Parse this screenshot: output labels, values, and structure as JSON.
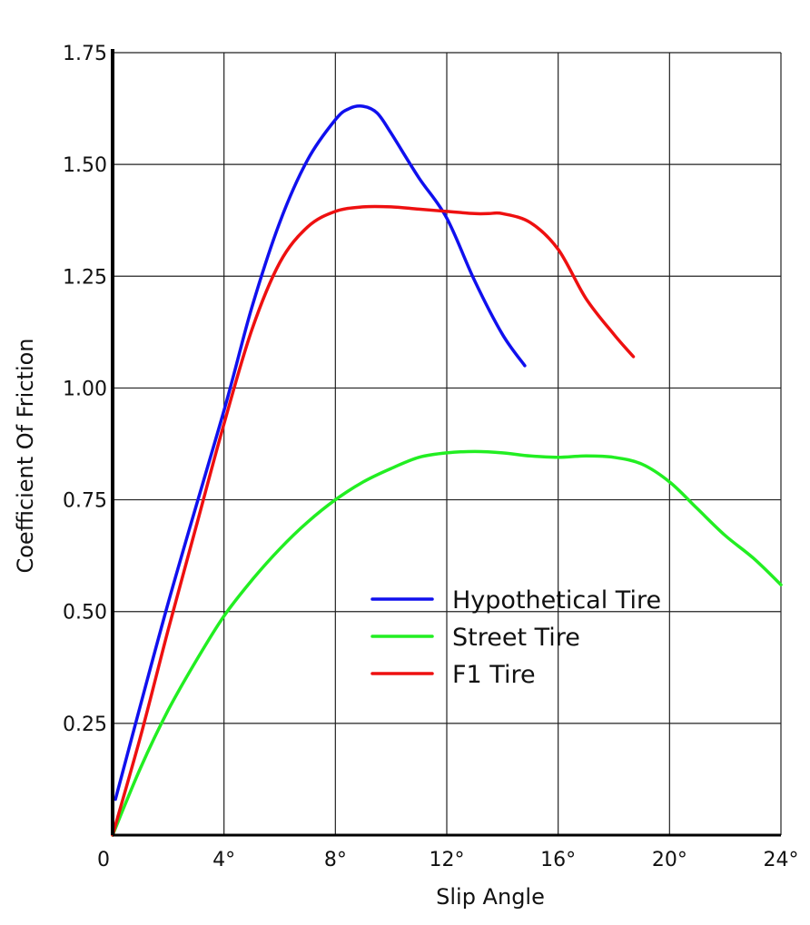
{
  "chart_data": {
    "type": "line",
    "title": "",
    "xlabel": "Slip Angle",
    "ylabel": "Coefficient Of Friction",
    "xlim": [
      0,
      24
    ],
    "ylim": [
      0,
      1.75
    ],
    "grid": true,
    "legend_position": "center-right",
    "x_ticks": [
      0,
      4,
      8,
      12,
      16,
      20,
      24
    ],
    "x_tick_labels": [
      "0",
      "4°",
      "8°",
      "12°",
      "16°",
      "20°",
      "24°"
    ],
    "y_ticks": [
      0.25,
      0.5,
      0.75,
      1.0,
      1.25,
      1.5,
      1.75
    ],
    "y_tick_labels": [
      "0.25",
      "0.50",
      "0.75",
      "1.00",
      "1.25",
      "1.50",
      "1.75"
    ],
    "series": [
      {
        "name": "Hypothetical Tire",
        "color": "#1010ee",
        "x": [
          0.1,
          2,
          4,
          5,
          6,
          7,
          8,
          8.5,
          9,
          9.5,
          10,
          11,
          12,
          13,
          14,
          14.8
        ],
        "y": [
          0.08,
          0.52,
          0.95,
          1.18,
          1.37,
          1.51,
          1.6,
          1.625,
          1.63,
          1.615,
          1.57,
          1.47,
          1.38,
          1.24,
          1.12,
          1.05
        ]
      },
      {
        "name": "Street Tire",
        "color": "#22ee22",
        "x": [
          0,
          1,
          2,
          3,
          4,
          5,
          6,
          7,
          8,
          9,
          10,
          11,
          12,
          13,
          14,
          15,
          16,
          17,
          18,
          19,
          20,
          21,
          22,
          23,
          24
        ],
        "y": [
          0,
          0.15,
          0.28,
          0.39,
          0.49,
          0.57,
          0.64,
          0.7,
          0.75,
          0.79,
          0.82,
          0.845,
          0.855,
          0.858,
          0.855,
          0.848,
          0.845,
          0.848,
          0.845,
          0.83,
          0.79,
          0.73,
          0.67,
          0.62,
          0.56
        ]
      },
      {
        "name": "F1 Tire",
        "color": "#ee1010",
        "x": [
          0,
          1,
          2,
          3,
          4,
          5,
          6,
          7,
          8,
          9,
          10,
          11,
          12,
          13,
          13.5,
          14,
          15,
          16,
          17,
          18,
          18.7
        ],
        "y": [
          0,
          0.22,
          0.46,
          0.69,
          0.92,
          1.13,
          1.28,
          1.36,
          1.395,
          1.405,
          1.405,
          1.4,
          1.395,
          1.39,
          1.39,
          1.39,
          1.37,
          1.31,
          1.2,
          1.12,
          1.07
        ]
      }
    ]
  }
}
